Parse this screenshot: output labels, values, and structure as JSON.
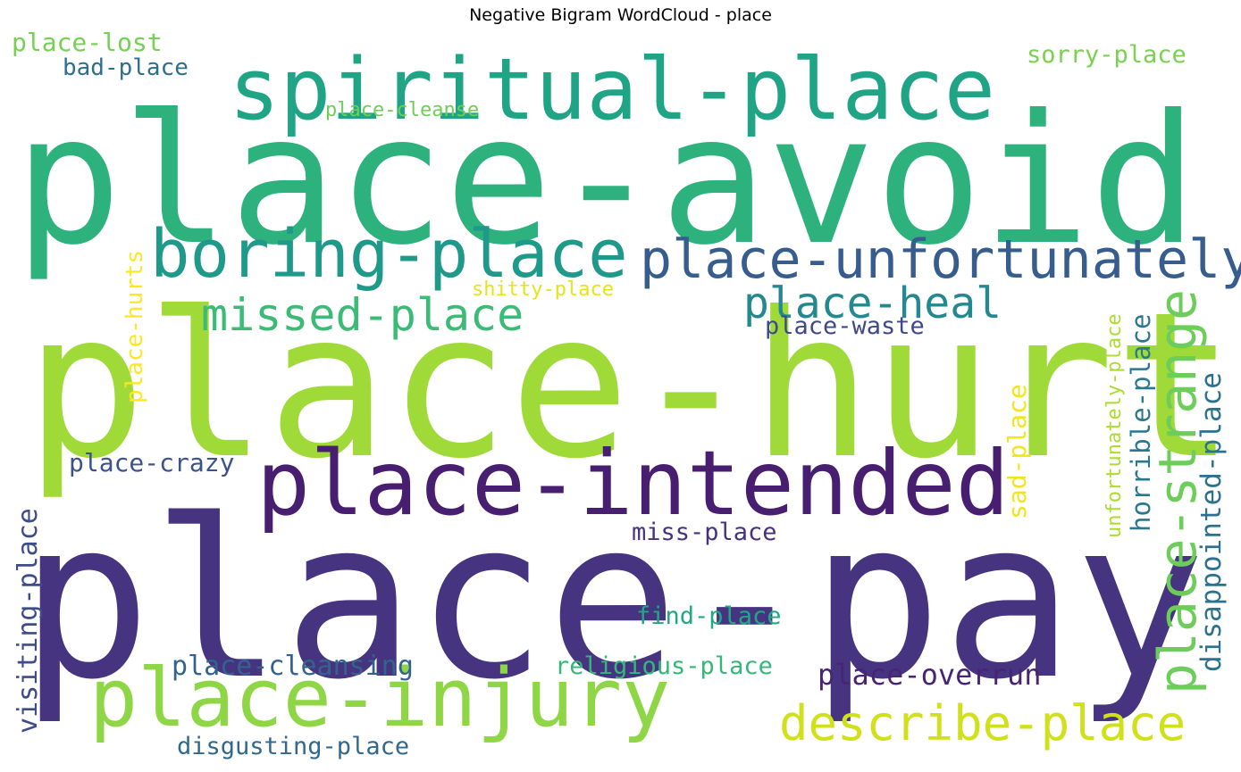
{
  "chart_data": {
    "type": "wordcloud",
    "title": "Negative Bigram WordCloud - place",
    "words": [
      {
        "text": "place-pay",
        "color": "#463480"
      },
      {
        "text": "place-hurt",
        "color": "#a0da39"
      },
      {
        "text": "place-avoid",
        "color": "#2db27d"
      },
      {
        "text": "spiritual-place",
        "color": "#20a486"
      },
      {
        "text": "place-intended",
        "color": "#481f70"
      },
      {
        "text": "place-injury",
        "color": "#8ed645"
      },
      {
        "text": "boring-place",
        "color": "#1f998a"
      },
      {
        "text": "place-unfortunately",
        "color": "#365d8d"
      },
      {
        "text": "place-strange",
        "color": "#6ccd5a"
      },
      {
        "text": "missed-place",
        "color": "#3bbb75"
      },
      {
        "text": "describe-place",
        "color": "#d0e11c"
      },
      {
        "text": "place-heal",
        "color": "#23898e"
      },
      {
        "text": "place-overrun",
        "color": "#482475"
      },
      {
        "text": "disappointed-place",
        "color": "#2c728e"
      },
      {
        "text": "horrible-place",
        "color": "#2a788e"
      },
      {
        "text": "visiting-place",
        "color": "#3e4c8a"
      },
      {
        "text": "place-cleansing",
        "color": "#33638d"
      },
      {
        "text": "sad-place",
        "color": "#f1e51d"
      },
      {
        "text": "place-crazy",
        "color": "#3b528b"
      },
      {
        "text": "miss-place",
        "color": "#46327e"
      },
      {
        "text": "religious-place",
        "color": "#35b779"
      },
      {
        "text": "find-place",
        "color": "#22a785"
      },
      {
        "text": "disgusting-place",
        "color": "#31688e"
      },
      {
        "text": "place-lost",
        "color": "#75d054"
      },
      {
        "text": "place-waste",
        "color": "#3e4989"
      },
      {
        "text": "sorry-place",
        "color": "#7ad151"
      },
      {
        "text": "place-hurts",
        "color": "#fde725"
      },
      {
        "text": "bad-place",
        "color": "#2e6f8e"
      },
      {
        "text": "unfortunately-place",
        "color": "#addc30"
      },
      {
        "text": "shitty-place",
        "color": "#e5e419"
      },
      {
        "text": "place-cleanse",
        "color": "#6ece58"
      }
    ]
  }
}
